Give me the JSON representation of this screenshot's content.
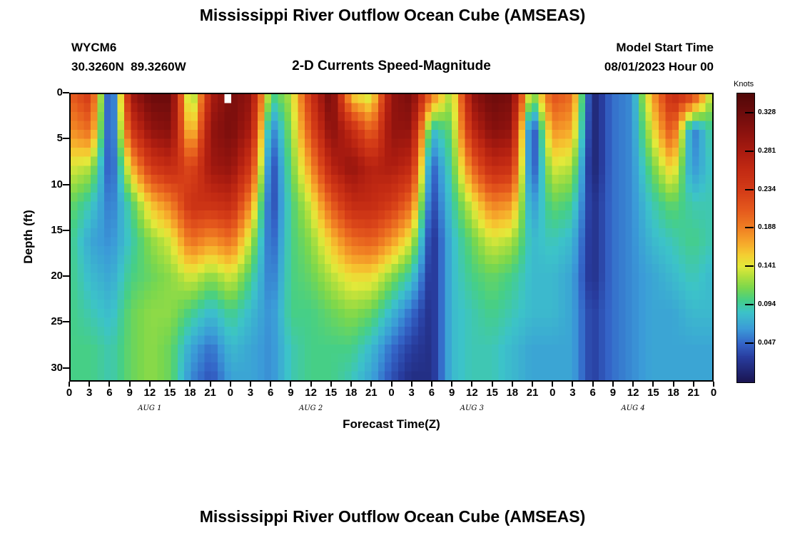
{
  "titles": {
    "top": "Mississippi River Outflow Ocean Cube (AMSEAS)",
    "bottom": "Mississippi River Outflow Ocean Cube (AMSEAS)"
  },
  "header": {
    "station": "WYCM6",
    "coords": "30.3260N  89.3260W",
    "subtitle": "2-D Currents Speed-Magnitude",
    "model_start_label": "Model Start Time",
    "model_start_value": "08/01/2023 Hour 00"
  },
  "chart_data": {
    "type": "heatmap",
    "title": "Mississippi River Outflow Ocean Cube (AMSEAS)",
    "xlabel": "Forecast Time(Z)",
    "ylabel": "Depth (ft)",
    "hour_range": [
      0,
      96
    ],
    "depth_range": [
      0,
      31.5
    ],
    "x_tick_hours": [
      0,
      3,
      6,
      9,
      12,
      15,
      18,
      21,
      24,
      27,
      30,
      33,
      36,
      39,
      42,
      45,
      48,
      51,
      54,
      57,
      60,
      63,
      66,
      69,
      72,
      75,
      78,
      81,
      84,
      87,
      90,
      93,
      96
    ],
    "x_tick_labels": [
      "0",
      "3",
      "6",
      "9",
      "12",
      "15",
      "18",
      "21",
      "0",
      "3",
      "6",
      "9",
      "12",
      "15",
      "18",
      "21",
      "0",
      "3",
      "6",
      "9",
      "12",
      "15",
      "18",
      "21",
      "0",
      "3",
      "6",
      "9",
      "12",
      "15",
      "18",
      "21",
      "0"
    ],
    "y_ticks": [
      0,
      5,
      10,
      15,
      20,
      25,
      30
    ],
    "day_labels": [
      "AUG 1",
      "AUG 2",
      "AUG 3",
      "AUG 4"
    ],
    "day_label_hours": [
      12,
      36,
      60,
      84
    ],
    "colorbar": {
      "label": "Knots",
      "range": [
        0,
        0.3525
      ],
      "ticks": [
        {
          "value": 0.328,
          "label": "0.328"
        },
        {
          "value": 0.281,
          "label": "0.281"
        },
        {
          "value": 0.234,
          "label": "0.234"
        },
        {
          "value": 0.188,
          "label": "0.188"
        },
        {
          "value": 0.141,
          "label": "0.141"
        },
        {
          "value": 0.094,
          "label": "0.094"
        },
        {
          "value": 0.047,
          "label": "0.047"
        }
      ]
    },
    "colormap": [
      [
        0.0,
        "#1a1552"
      ],
      [
        0.03,
        "#283c9e"
      ],
      [
        0.047,
        "#3465c8"
      ],
      [
        0.065,
        "#3b9bd8"
      ],
      [
        0.085,
        "#3cc3c9"
      ],
      [
        0.1,
        "#46cf86"
      ],
      [
        0.115,
        "#7ad74d"
      ],
      [
        0.13,
        "#b5e03c"
      ],
      [
        0.141,
        "#e2e93a"
      ],
      [
        0.155,
        "#f4cf32"
      ],
      [
        0.17,
        "#f6a82b"
      ],
      [
        0.188,
        "#f08023"
      ],
      [
        0.21,
        "#e55a1d"
      ],
      [
        0.234,
        "#d43c17"
      ],
      [
        0.26,
        "#c22a13"
      ],
      [
        0.281,
        "#ab1c10"
      ],
      [
        0.305,
        "#8c120e"
      ],
      [
        0.328,
        "#6e0c0c"
      ],
      [
        0.352,
        "#520808"
      ]
    ],
    "grid": {
      "hours": [
        0,
        3,
        6,
        9,
        12,
        15,
        18,
        21,
        24,
        27,
        30,
        33,
        36,
        39,
        42,
        45,
        48,
        51,
        54,
        57,
        60,
        63,
        66,
        69,
        72,
        75,
        78,
        81,
        84,
        87,
        90,
        93,
        96
      ],
      "depths": [
        0,
        4,
        8,
        12,
        16,
        20,
        24,
        28,
        31
      ],
      "values": [
        [
          0.21,
          0.18,
          0.14,
          0.11,
          0.1,
          0.1,
          0.1,
          0.1,
          0.1
        ],
        [
          0.24,
          0.2,
          0.13,
          0.09,
          0.07,
          0.08,
          0.09,
          0.1,
          0.1
        ],
        [
          0.01,
          0.02,
          0.03,
          0.05,
          0.06,
          0.07,
          0.08,
          0.09,
          0.09
        ],
        [
          0.29,
          0.24,
          0.16,
          0.1,
          0.09,
          0.1,
          0.11,
          0.11,
          0.11
        ],
        [
          0.33,
          0.3,
          0.24,
          0.16,
          0.12,
          0.11,
          0.12,
          0.12,
          0.12
        ],
        [
          0.33,
          0.31,
          0.26,
          0.19,
          0.14,
          0.12,
          0.12,
          0.11,
          0.11
        ],
        [
          0.1,
          0.14,
          0.22,
          0.25,
          0.2,
          0.14,
          0.1,
          0.07,
          0.06
        ],
        [
          0.28,
          0.3,
          0.29,
          0.25,
          0.18,
          0.12,
          0.08,
          0.05,
          0.04
        ],
        [
          0.32,
          0.32,
          0.3,
          0.26,
          0.2,
          0.14,
          0.1,
          0.08,
          0.07
        ],
        [
          0.3,
          0.28,
          0.24,
          0.18,
          0.13,
          0.1,
          0.08,
          0.07,
          0.07
        ],
        [
          0.1,
          0.05,
          0.03,
          0.03,
          0.04,
          0.05,
          0.06,
          0.06,
          0.06
        ],
        [
          0.13,
          0.12,
          0.11,
          0.1,
          0.1,
          0.1,
          0.1,
          0.09,
          0.09
        ],
        [
          0.25,
          0.22,
          0.18,
          0.14,
          0.12,
          0.11,
          0.1,
          0.1,
          0.1
        ],
        [
          0.33,
          0.31,
          0.27,
          0.21,
          0.16,
          0.13,
          0.11,
          0.1,
          0.1
        ],
        [
          0.15,
          0.26,
          0.3,
          0.26,
          0.2,
          0.15,
          0.12,
          0.1,
          0.09
        ],
        [
          0.13,
          0.2,
          0.27,
          0.26,
          0.21,
          0.15,
          0.11,
          0.08,
          0.07
        ],
        [
          0.3,
          0.3,
          0.28,
          0.24,
          0.18,
          0.12,
          0.08,
          0.05,
          0.04
        ],
        [
          0.32,
          0.3,
          0.26,
          0.2,
          0.14,
          0.09,
          0.05,
          0.03,
          0.02
        ],
        [
          0.2,
          0.08,
          0.04,
          0.03,
          0.02,
          0.02,
          0.02,
          0.02,
          0.02
        ],
        [
          0.12,
          0.11,
          0.1,
          0.09,
          0.08,
          0.08,
          0.08,
          0.08,
          0.08
        ],
        [
          0.3,
          0.26,
          0.2,
          0.14,
          0.11,
          0.1,
          0.09,
          0.09,
          0.09
        ],
        [
          0.33,
          0.31,
          0.26,
          0.19,
          0.14,
          0.11,
          0.1,
          0.09,
          0.09
        ],
        [
          0.32,
          0.3,
          0.25,
          0.18,
          0.13,
          0.1,
          0.09,
          0.08,
          0.08
        ],
        [
          0.11,
          0.02,
          0.03,
          0.06,
          0.08,
          0.08,
          0.08,
          0.07,
          0.07
        ],
        [
          0.22,
          0.18,
          0.14,
          0.11,
          0.09,
          0.08,
          0.08,
          0.07,
          0.07
        ],
        [
          0.2,
          0.17,
          0.13,
          0.1,
          0.08,
          0.07,
          0.07,
          0.07,
          0.07
        ],
        [
          0.01,
          0.01,
          0.01,
          0.02,
          0.02,
          0.02,
          0.03,
          0.03,
          0.03
        ],
        [
          0.05,
          0.05,
          0.05,
          0.05,
          0.05,
          0.05,
          0.05,
          0.05,
          0.05
        ],
        [
          0.06,
          0.06,
          0.06,
          0.06,
          0.06,
          0.06,
          0.06,
          0.06,
          0.06
        ],
        [
          0.17,
          0.14,
          0.11,
          0.09,
          0.08,
          0.07,
          0.07,
          0.07,
          0.07
        ],
        [
          0.26,
          0.22,
          0.16,
          0.11,
          0.09,
          0.08,
          0.07,
          0.07,
          0.07
        ],
        [
          0.24,
          0.05,
          0.06,
          0.09,
          0.1,
          0.09,
          0.08,
          0.07,
          0.07
        ],
        [
          0.12,
          0.1,
          0.09,
          0.09,
          0.09,
          0.08,
          0.08,
          0.07,
          0.07
        ]
      ]
    },
    "missing_cells": [
      [
        23,
        0
      ]
    ]
  }
}
